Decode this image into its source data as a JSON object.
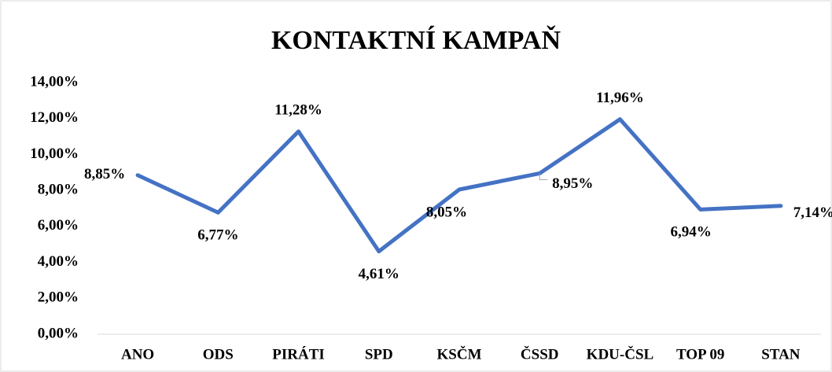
{
  "chart_data": {
    "type": "line",
    "title": "KONTAKTNÍ KAMPAŇ",
    "categories": [
      "ANO",
      "ODS",
      "PIRÁTI",
      "SPD",
      "KSČM",
      "ČSSD",
      "KDU-ČSL",
      "TOP 09",
      "STAN"
    ],
    "values": [
      8.85,
      6.77,
      11.28,
      4.61,
      8.05,
      8.95,
      11.96,
      6.94,
      7.14
    ],
    "value_labels": [
      "8,85%",
      "6,77%",
      "11,28%",
      "4,61%",
      "8,05%",
      "8,95%",
      "11,96%",
      "6,94%",
      "7,14%"
    ],
    "color": "#4472c4",
    "ylim": [
      0,
      14
    ],
    "yticks": [
      {
        "value": 0,
        "label": "0,00%"
      },
      {
        "value": 2,
        "label": "2,00%"
      },
      {
        "value": 4,
        "label": "4,00%"
      },
      {
        "value": 6,
        "label": "6,00%"
      },
      {
        "value": 8,
        "label": "8,00%"
      },
      {
        "value": 10,
        "label": "10,00%"
      },
      {
        "value": 12,
        "label": "12,00%"
      },
      {
        "value": 14,
        "label": "14,00%"
      }
    ],
    "grid": false
  }
}
